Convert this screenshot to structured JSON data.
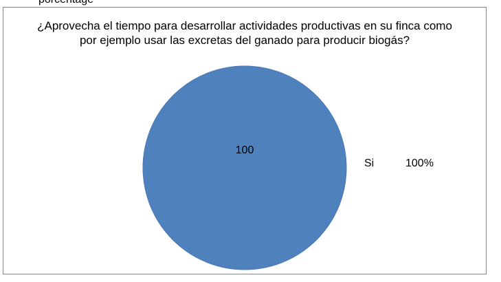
{
  "page": {
    "top_fragment": "porcentage"
  },
  "chart_data": {
    "type": "pie",
    "title_lines": [
      "¿Aprovecha el tiempo para desarrollar actividades productivas en su finca como",
      "por ejemplo usar las excretas del ganado para producir biogás?"
    ],
    "slices": [
      {
        "label": "Si",
        "value": 100,
        "data_label": "100",
        "legend_percent": "100%"
      }
    ],
    "colors": {
      "slice": "#4f81bd",
      "slice_edge": "#4a7ab4",
      "frame": "#868686"
    },
    "legend_position": "right"
  }
}
